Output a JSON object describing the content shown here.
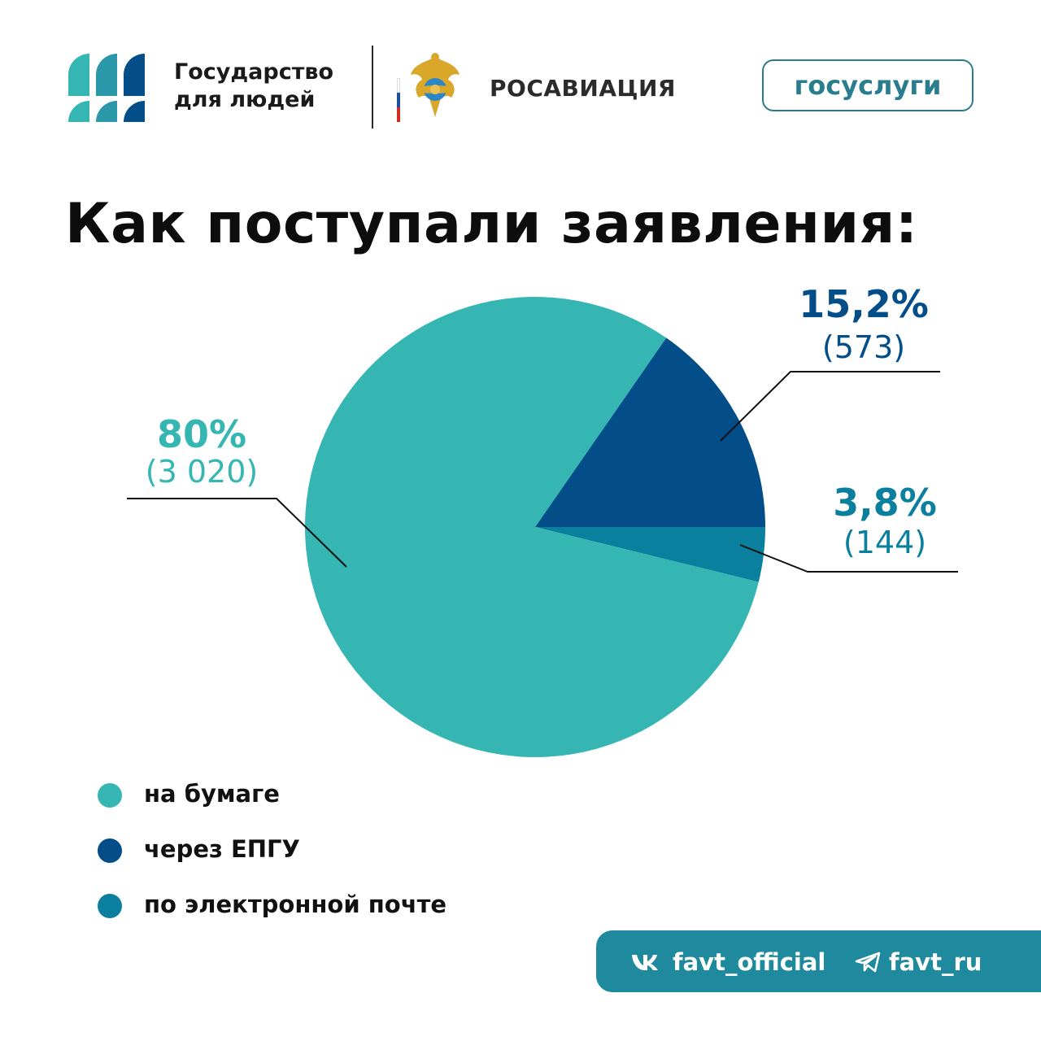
{
  "header": {
    "gov_line1": "Государство",
    "gov_line2": "для людей",
    "agency": "РОСАВИАЦИЯ",
    "gosuslugi": "госуслуги"
  },
  "title": "Как поступали заявления:",
  "colors": {
    "paper": "#35b6b3",
    "epgu": "#034d89",
    "email": "#0b7f9e",
    "footer": "#1f8a9e"
  },
  "chart_data": {
    "type": "pie",
    "slices": [
      {
        "name": "на бумаге",
        "percent": 80,
        "percent_label": "80%",
        "count_label": "(3 020)",
        "color": "#35b6b3"
      },
      {
        "name": "через ЕПГУ",
        "percent": 15.2,
        "percent_label": "15,2%",
        "count_label": "(573)",
        "color": "#034d89"
      },
      {
        "name": "по электронной почте",
        "percent": 3.8,
        "percent_label": "3,8%",
        "count_label": "(144)",
        "color": "#0b7f9e"
      }
    ],
    "legend": [
      "на бумаге",
      "через ЕПГУ",
      "по электронной почте"
    ],
    "legend_position": "bottom-left"
  },
  "footer": {
    "vk_handle": "favt_official",
    "tg_handle": "favt_ru"
  }
}
